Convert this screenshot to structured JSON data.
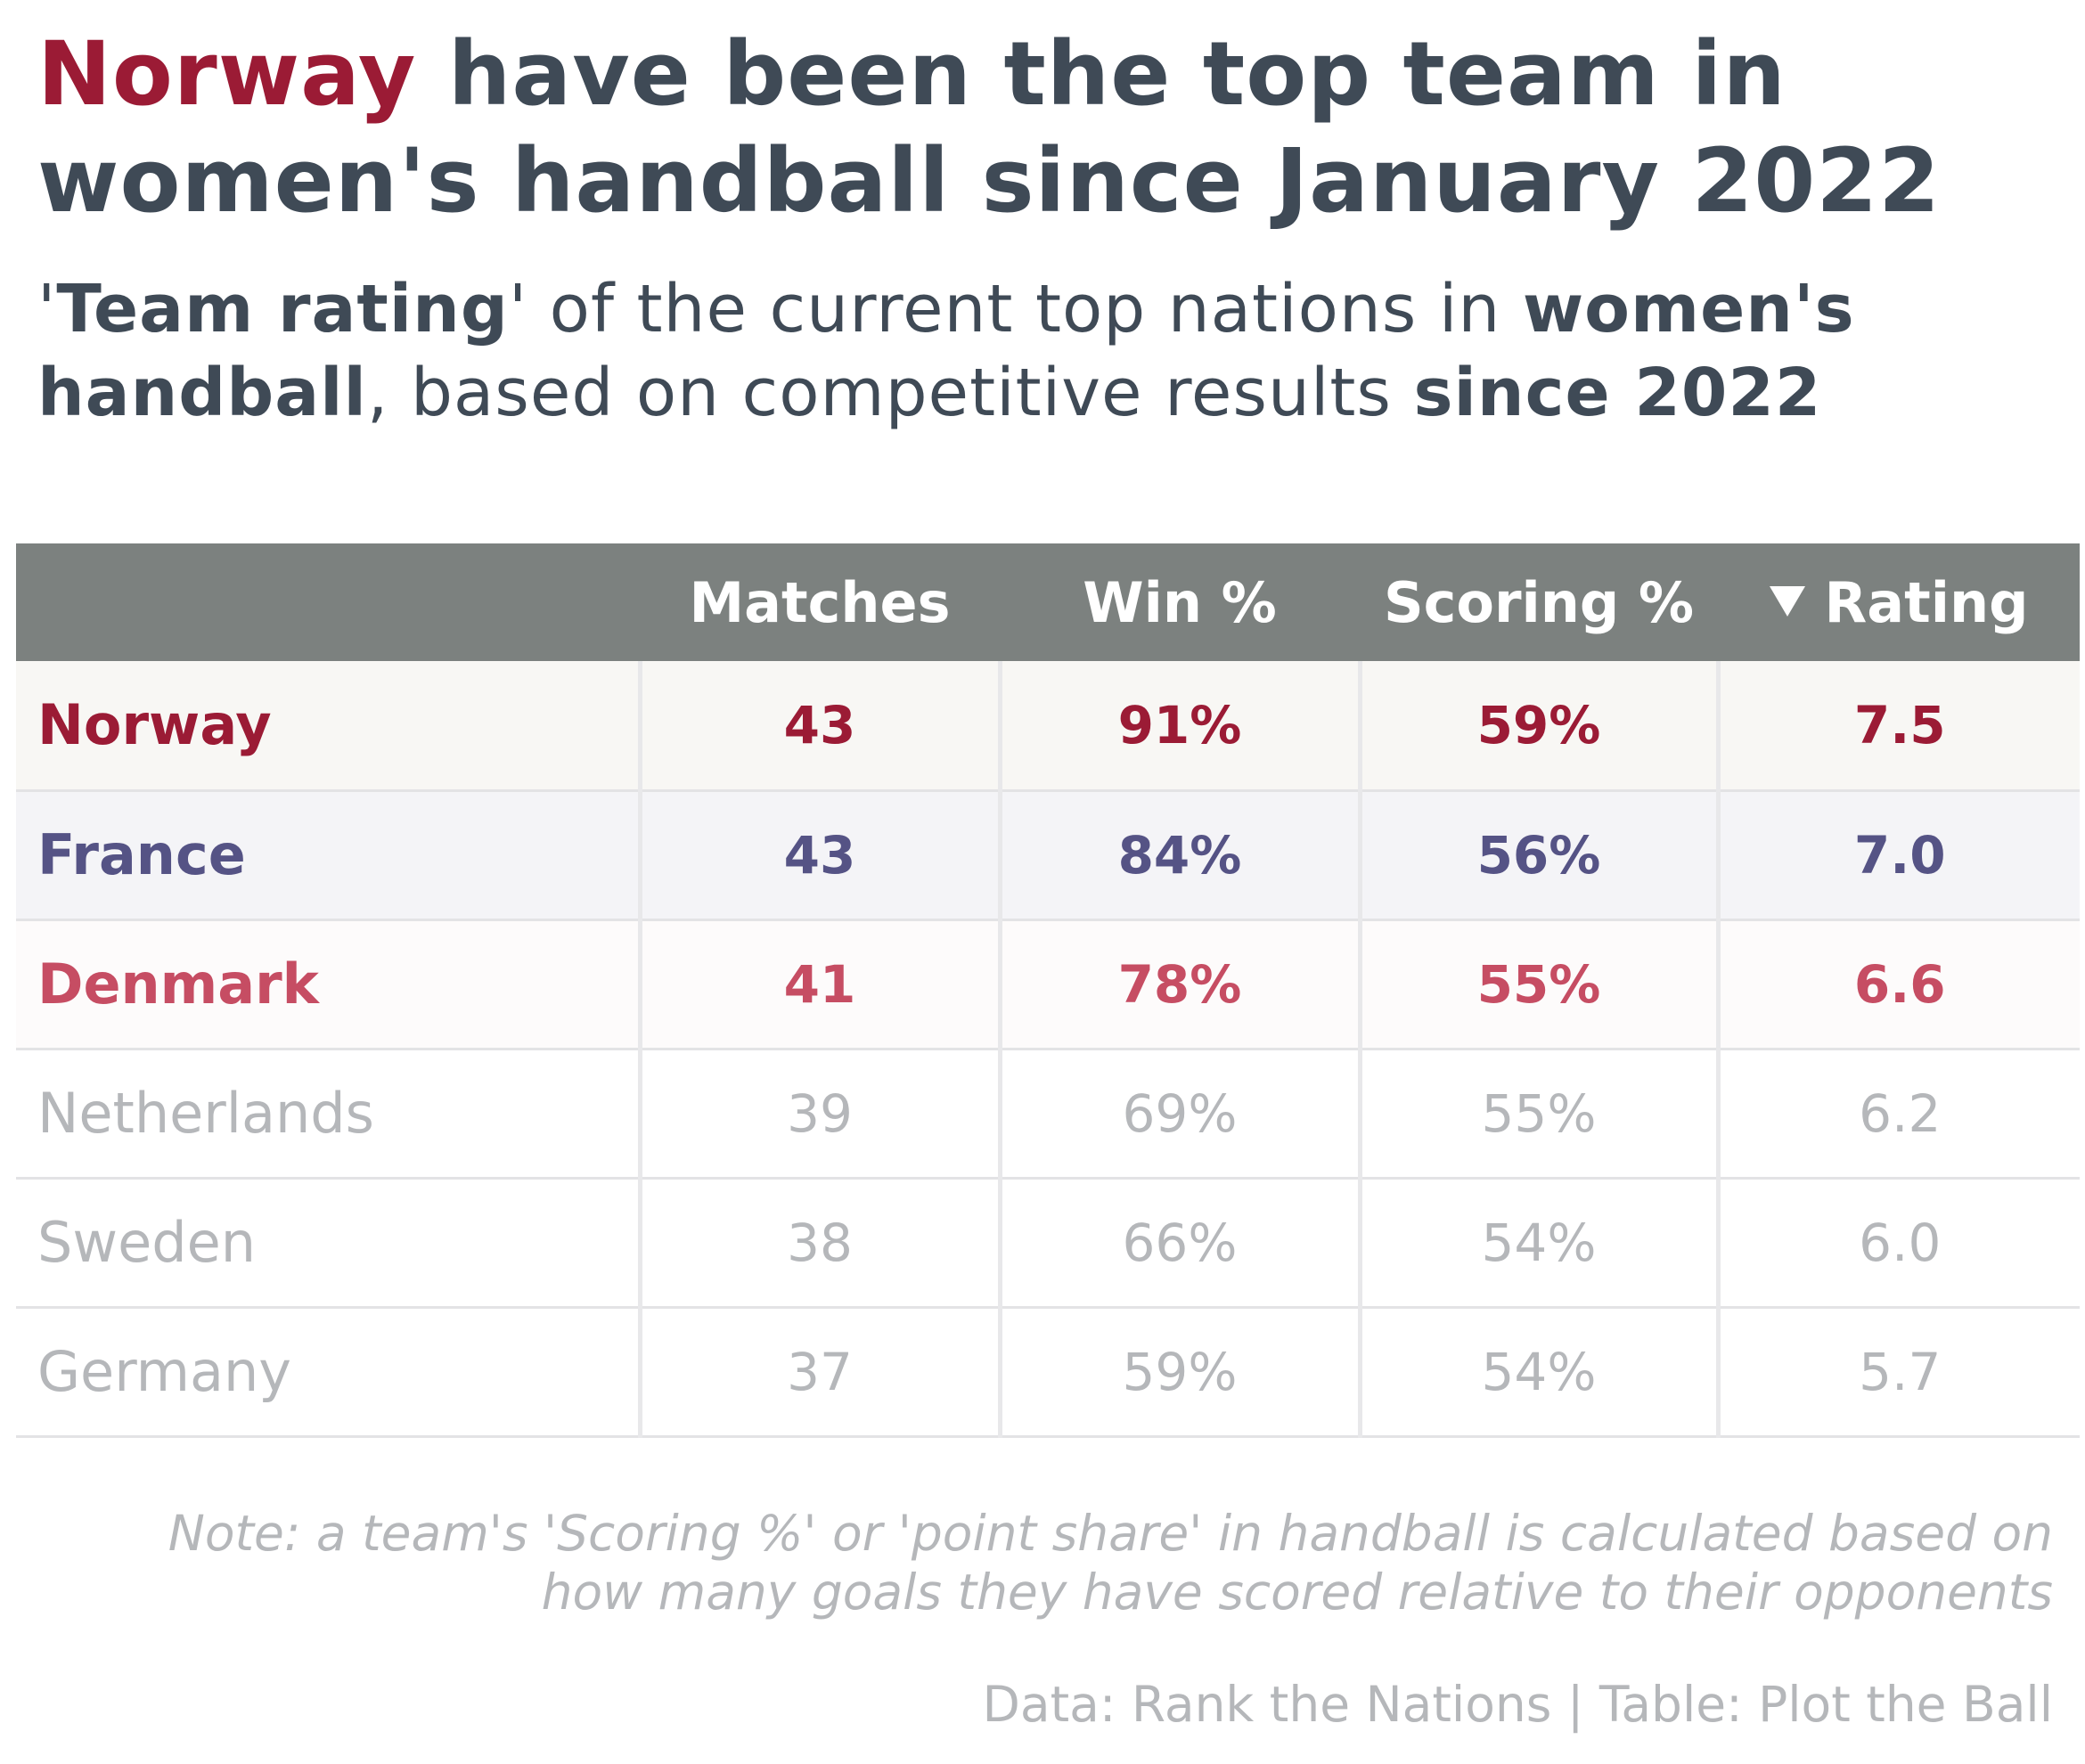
{
  "title": {
    "highlight": "Norway",
    "rest": " have been the top team in women's handball since January 2022"
  },
  "subtitle": {
    "part1": "'",
    "bold1": "Team rating",
    "part2": "' of the current top nations in ",
    "bold2": "women's handball",
    "part3": ", based on competitive results ",
    "bold3": "since 2022"
  },
  "colors": {
    "norway": "#9b1b35",
    "france": "#555385",
    "denmark": "#c64d63",
    "muted": "#b5b7ba",
    "header_bg": "#7c817f",
    "title": "#3f4a56"
  },
  "chart_data": {
    "type": "table",
    "columns": [
      "",
      "Matches",
      "Win %",
      "Scoring %",
      "Rating"
    ],
    "sort_indicator": "descending on Rating",
    "rows": [
      {
        "team": "Norway",
        "matches": "43",
        "win": "91%",
        "scoring": "59%",
        "rating": "7.5"
      },
      {
        "team": "France",
        "matches": "43",
        "win": "84%",
        "scoring": "56%",
        "rating": "7.0"
      },
      {
        "team": "Denmark",
        "matches": "41",
        "win": "78%",
        "scoring": "55%",
        "rating": "6.6"
      },
      {
        "team": "Netherlands",
        "matches": "39",
        "win": "69%",
        "scoring": "55%",
        "rating": "6.2"
      },
      {
        "team": "Sweden",
        "matches": "38",
        "win": "66%",
        "scoring": "54%",
        "rating": "6.0"
      },
      {
        "team": "Germany",
        "matches": "37",
        "win": "59%",
        "scoring": "54%",
        "rating": "5.7"
      }
    ]
  },
  "note": "Note: a team's 'Scoring %' or 'point share' in handball is calculated based on how many goals they have scored relative to their opponents",
  "credits": "Data: Rank the Nations | Table: Plot the Ball"
}
